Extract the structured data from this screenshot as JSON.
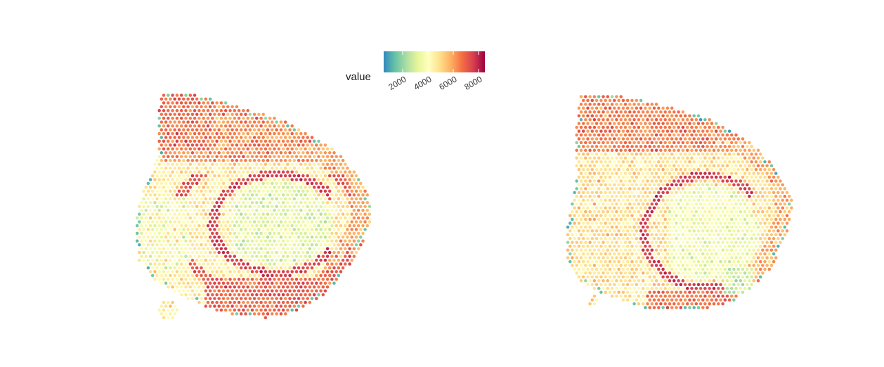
{
  "chart_data": {
    "type": "scatter",
    "subtype": "spatial-spot-map",
    "title": "",
    "xlabel": "",
    "ylabel": "",
    "grid": false,
    "axes_visible": false,
    "legend": {
      "title": "value",
      "placement": "top-center",
      "kind": "continuous-colorbar",
      "ticks": [
        2000,
        4000,
        6000,
        8000
      ],
      "tick_labels": [
        "2000",
        "4000",
        "6000",
        "8000"
      ],
      "range": [
        500,
        8500
      ]
    },
    "color_scale": {
      "name": "Spectral (reversed)",
      "stops": [
        "#3288bd",
        "#66c2a5",
        "#abdda4",
        "#e6f598",
        "#ffffbf",
        "#fee08b",
        "#fdae61",
        "#f46d43",
        "#d53e4f",
        "#9e0142"
      ]
    },
    "panels": [
      {
        "name": "",
        "description_of_pattern": "outer cortex band high (~6500), inner arc high (~7500), ventral region high, interior mixed 3000-5500"
      },
      {
        "name": "",
        "description_of_pattern": "similar section, slightly lower overall; upper band ~6500, thin red arc, interior ~4000-5500"
      }
    ]
  }
}
